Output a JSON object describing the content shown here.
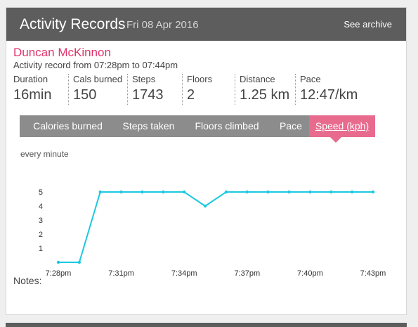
{
  "header": {
    "title": "Activity Records",
    "date": "Fri 08 Apr 2016",
    "archive_link": "See archive"
  },
  "record": {
    "user_name": "Duncan McKinnon",
    "range": "Activity record from 07:28pm to 07:44pm"
  },
  "stats": [
    {
      "label": "Duration",
      "value": "16min"
    },
    {
      "label": "Cals burned",
      "value": "150"
    },
    {
      "label": "Steps",
      "value": "1743"
    },
    {
      "label": "Floors",
      "value": "2"
    },
    {
      "label": "Distance",
      "value": "1.25 km"
    },
    {
      "label": "Pace",
      "value": "12:47/km"
    }
  ],
  "tabs": [
    {
      "label": "Calories burned",
      "active": false
    },
    {
      "label": "Steps taken",
      "active": false
    },
    {
      "label": "Floors climbed",
      "active": false
    },
    {
      "label": "Pace",
      "active": false
    },
    {
      "label": "Speed (kph)",
      "active": true
    }
  ],
  "chart": {
    "interval_label": "every minute"
  },
  "notes_label": "Notes:",
  "colors": {
    "header_bg": "#5d5d5d",
    "accent": "#e0336b",
    "active_tab": "#e86b8e",
    "tab_bg": "#8c8c8c",
    "line": "#1bc9e0"
  },
  "chart_data": {
    "type": "line",
    "title": "",
    "xlabel": "",
    "ylabel": "",
    "x": [
      "7:28pm",
      "7:29pm",
      "7:30pm",
      "7:31pm",
      "7:32pm",
      "7:33pm",
      "7:34pm",
      "7:35pm",
      "7:36pm",
      "7:37pm",
      "7:38pm",
      "7:39pm",
      "7:40pm",
      "7:41pm",
      "7:42pm",
      "7:43pm"
    ],
    "values": [
      0,
      0,
      5,
      5,
      5,
      5,
      5,
      4,
      5,
      5,
      5,
      5,
      5,
      5,
      5,
      5
    ],
    "x_tick_labels": [
      "7:28pm",
      "7:31pm",
      "7:34pm",
      "7:37pm",
      "7:40pm",
      "7:43pm"
    ],
    "y_ticks": [
      1,
      2,
      3,
      4,
      5
    ],
    "ylim": [
      0,
      5
    ],
    "grid": false,
    "legend": "none"
  }
}
